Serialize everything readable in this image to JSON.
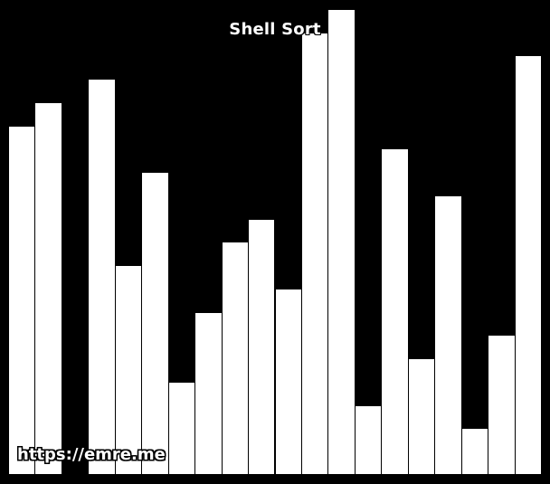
{
  "title": "Shell Sort",
  "watermark": "https://emre.me",
  "colors": {
    "background": "#000000",
    "bar_fill": "#ffffff",
    "bar_border": "#000000",
    "text": "#ffffff"
  },
  "chart_data": {
    "type": "bar",
    "title": "Shell Sort",
    "values": [
      15,
      16,
      0,
      17,
      9,
      13,
      4,
      7,
      10,
      11,
      8,
      19,
      20,
      3,
      14,
      5,
      12,
      2,
      6,
      18
    ],
    "ylim": [
      0,
      20
    ],
    "grid": false
  }
}
